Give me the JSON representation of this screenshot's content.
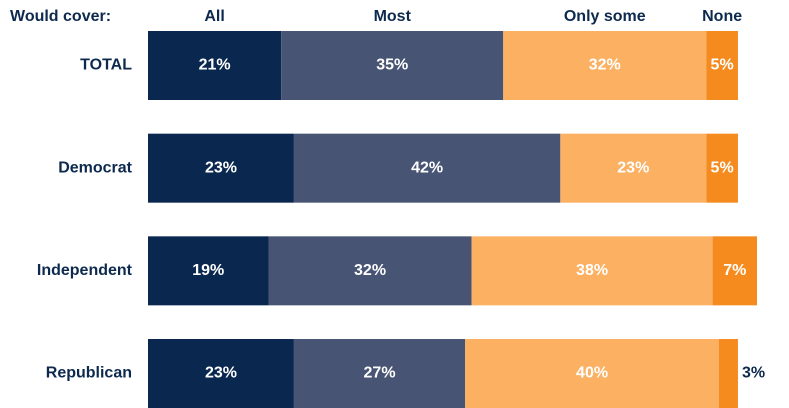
{
  "chart_data": {
    "type": "stacked-bar-horizontal",
    "legend_title": "Would cover:",
    "categories": [
      "TOTAL",
      "Democrat",
      "Independent",
      "Republican"
    ],
    "series": [
      {
        "name": "All",
        "color": "#0a2750",
        "values": [
          21,
          23,
          19,
          23
        ],
        "value_labels": [
          "21%",
          "23%",
          "19%",
          "23%"
        ]
      },
      {
        "name": "Most",
        "color": "#485473",
        "values": [
          35,
          42,
          32,
          27
        ],
        "value_labels": [
          "35%",
          "42%",
          "32%",
          "27%"
        ]
      },
      {
        "name": "Only some",
        "color": "#fbb062",
        "values": [
          32,
          23,
          38,
          40
        ],
        "value_labels": [
          "32%",
          "23%",
          "38%",
          "40%"
        ]
      },
      {
        "name": "None",
        "color": "#f58b1e",
        "values": [
          5,
          5,
          7,
          3
        ],
        "value_labels": [
          "5%",
          "5%",
          "7%",
          "3%"
        ]
      }
    ]
  }
}
